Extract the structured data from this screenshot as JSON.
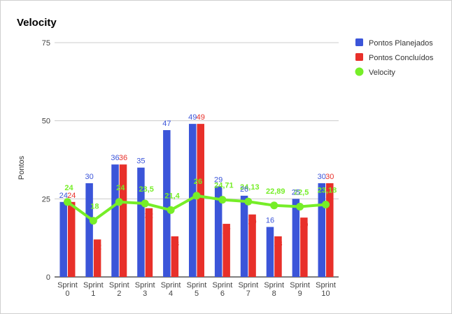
{
  "chart_data": {
    "type": "bar",
    "title": "Velocity",
    "ylabel": "Pontos",
    "xlabel": "",
    "ylim": [
      0,
      75
    ],
    "yticks": [
      "0",
      "25",
      "50",
      "75"
    ],
    "ytick_values": [
      0,
      25,
      50,
      75
    ],
    "categories": [
      [
        "Sprint",
        "0"
      ],
      [
        "Sprint",
        "1"
      ],
      [
        "Sprint",
        "2"
      ],
      [
        "Sprint",
        "3"
      ],
      [
        "Sprint",
        "4"
      ],
      [
        "Sprint",
        "5"
      ],
      [
        "Sprint",
        "6"
      ],
      [
        "Sprint",
        "7"
      ],
      [
        "Sprint",
        "8"
      ],
      [
        "Sprint",
        "9"
      ],
      [
        "Sprint",
        "10"
      ]
    ],
    "series": [
      {
        "name": "Pontos Planejados",
        "kind": "bar",
        "color": "#3b55d9",
        "values": [
          24,
          30,
          36,
          35,
          47,
          49,
          29,
          26,
          16,
          25,
          30
        ],
        "labels": [
          "24",
          "30",
          "36",
          "35",
          "47",
          "49",
          "29",
          "26",
          "16",
          "25",
          "30"
        ]
      },
      {
        "name": "Pontos Concluídos",
        "kind": "bar",
        "color": "#e8302a",
        "values": [
          24,
          12,
          36,
          22,
          13,
          49,
          17,
          20,
          13,
          19,
          30
        ],
        "labels": [
          "24",
          "12",
          "36",
          "22",
          "13",
          "49",
          "17",
          "20",
          "13",
          "19",
          "30"
        ]
      },
      {
        "name": "Velocity",
        "kind": "line",
        "color": "#76ee28",
        "values": [
          24,
          18,
          24,
          23.5,
          21.4,
          26,
          24.71,
          24.13,
          22.89,
          22.5,
          23.18
        ],
        "labels": [
          "24",
          "18",
          "24",
          "23,5",
          "21,4",
          "26",
          "24,71",
          "24,13",
          "22,89",
          "22,5",
          "23,18"
        ]
      }
    ],
    "grid": true,
    "legend_position": "right"
  }
}
